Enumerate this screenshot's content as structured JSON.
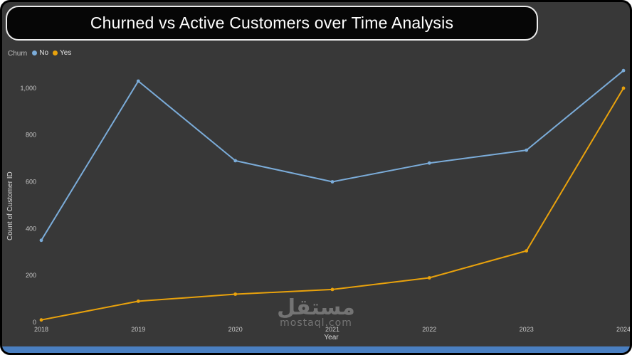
{
  "window": {
    "background": "#383838",
    "accent_bar_color": "#4a7fc1"
  },
  "header": {
    "title": "Churned vs Active Customers over Time Analysis"
  },
  "legend": {
    "title": "Churn"
  },
  "watermark": {
    "arabic": "مستقل",
    "domain": "mostaql.com"
  },
  "chart_data": {
    "type": "line",
    "title": "Churned vs Active Customers over Time Analysis",
    "x": [
      2018,
      2019,
      2020,
      2021,
      2022,
      2023,
      2024
    ],
    "xlabel": "Year",
    "ylabel": "Count of Customer ID",
    "ylim": [
      0,
      1100
    ],
    "yticks": [
      0,
      200,
      400,
      600,
      800,
      1000
    ],
    "grid": false,
    "legend_title": "Churn",
    "legend_position": "top-left",
    "series": [
      {
        "name": "No",
        "color": "#7bacd9",
        "values": [
          350,
          1030,
          690,
          600,
          680,
          735,
          1075
        ]
      },
      {
        "name": "Yes",
        "color": "#e9a20c",
        "values": [
          10,
          90,
          120,
          140,
          190,
          305,
          1000
        ]
      }
    ]
  }
}
